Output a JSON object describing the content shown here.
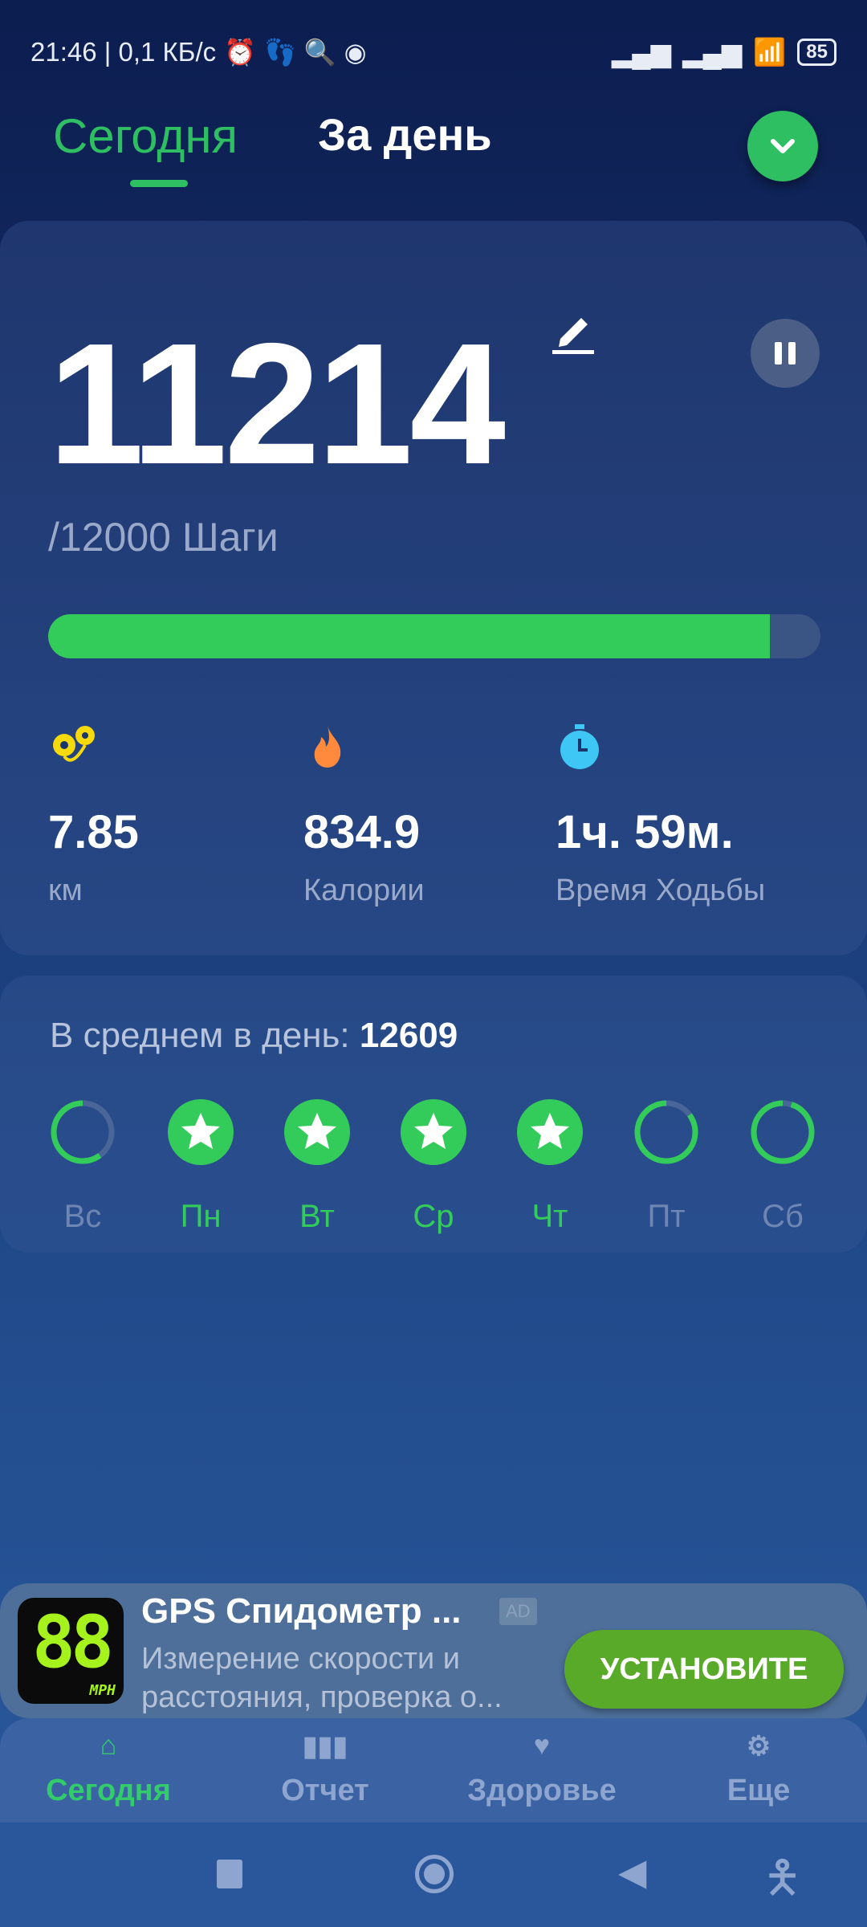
{
  "status_bar": {
    "time": "21:46",
    "net_speed": "0,1 КБ/с",
    "battery": "85",
    "icons": [
      "alarm-icon",
      "footsteps-icon",
      "search-icon",
      "media-icon",
      "signal-icon",
      "signal-icon",
      "wifi-icon",
      "battery-icon"
    ]
  },
  "header": {
    "tabs": [
      {
        "label": "Сегодня",
        "active": true
      },
      {
        "label": "За день",
        "active": false
      }
    ],
    "menu_icon": "chevron-down-icon"
  },
  "today": {
    "steps": "11214",
    "goal": "/12000 Шаги",
    "progress": 0.9345,
    "stats": [
      {
        "icon": "location-pin-icon",
        "value": "7.85",
        "label": "км",
        "color": "#f5d90a"
      },
      {
        "icon": "flame-icon",
        "value": "834.9",
        "label": "Калории",
        "color": "#ff8a3d"
      },
      {
        "icon": "stopwatch-icon",
        "value": "1ч. 59м.",
        "label": "Время Ходьбы",
        "color": "#3ec6f5"
      }
    ]
  },
  "week": {
    "avg_label": "В среднем в день:",
    "avg_value": "12609",
    "days": [
      {
        "label": "Вс",
        "progress": 0.6,
        "done": false
      },
      {
        "label": "Пн",
        "progress": 1,
        "done": true
      },
      {
        "label": "Вт",
        "progress": 1,
        "done": true
      },
      {
        "label": "Ср",
        "progress": 1,
        "done": true
      },
      {
        "label": "Чт",
        "progress": 1,
        "done": true
      },
      {
        "label": "Пт",
        "progress": 0.85,
        "done": false
      },
      {
        "label": "Сб",
        "progress": 0.95,
        "done": false
      }
    ]
  },
  "ad": {
    "icon_text": "88",
    "icon_sub": "MPH",
    "title": "GPS Спидометр ...",
    "badge": "AD",
    "desc_line1": "Измерение скорости и",
    "desc_line2": "расстояния, проверка о...",
    "cta": "УСТАНОВИТЕ"
  },
  "bottom_nav": [
    {
      "label": "Сегодня",
      "icon": "home-icon",
      "active": true
    },
    {
      "label": "Отчет",
      "icon": "bar-chart-icon"
    },
    {
      "label": "Здоровье",
      "icon": "heart-pulse-icon"
    },
    {
      "label": "Еще",
      "icon": "gear-icon"
    }
  ],
  "colors": {
    "accent": "#33cc5a",
    "background_top": "#0c1d4f",
    "background_bottom": "#2a5a9e"
  }
}
